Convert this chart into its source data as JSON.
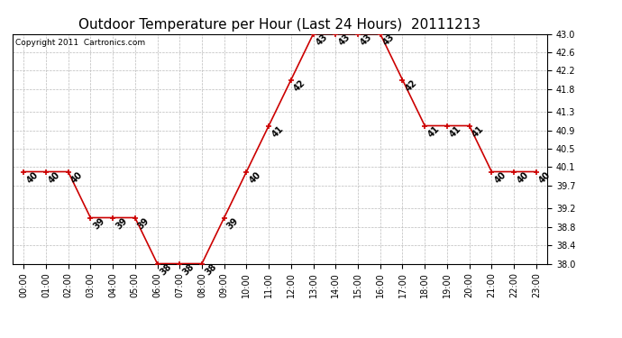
{
  "title": "Outdoor Temperature per Hour (Last 24 Hours)  20111213",
  "copyright_text": "Copyright 2011  Cartronics.com",
  "hours": [
    "00:00",
    "01:00",
    "02:00",
    "03:00",
    "04:00",
    "05:00",
    "06:00",
    "07:00",
    "08:00",
    "09:00",
    "10:00",
    "11:00",
    "12:00",
    "13:00",
    "14:00",
    "15:00",
    "16:00",
    "17:00",
    "18:00",
    "19:00",
    "20:00",
    "21:00",
    "22:00",
    "23:00"
  ],
  "temperatures": [
    40,
    40,
    40,
    39,
    39,
    39,
    38,
    38,
    38,
    39,
    40,
    41,
    42,
    43,
    43,
    43,
    43,
    42,
    41,
    41,
    41,
    40,
    40,
    40
  ],
  "line_color": "#cc0000",
  "marker_color": "#cc0000",
  "bg_color": "#ffffff",
  "grid_color": "#bbbbbb",
  "ylim_min": 38.0,
  "ylim_max": 43.0,
  "yticks": [
    38.0,
    38.4,
    38.8,
    39.2,
    39.7,
    40.1,
    40.5,
    40.9,
    41.3,
    41.8,
    42.2,
    42.6,
    43.0
  ],
  "title_fontsize": 11,
  "tick_fontsize": 7,
  "annotation_fontsize": 7,
  "copyright_fontsize": 6.5
}
